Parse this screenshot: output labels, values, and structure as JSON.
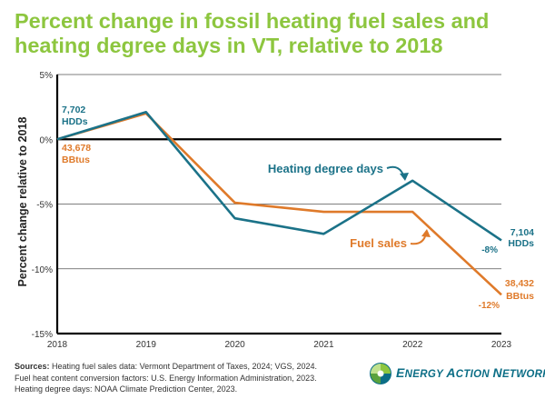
{
  "title": "Percent change in fossil heating fuel sales and heating degree days in VT, relative to 2018",
  "chart_data": {
    "type": "line",
    "x": [
      2018,
      2019,
      2020,
      2021,
      2022,
      2023
    ],
    "ylabel": "Percent change relative to 2018",
    "ylim": [
      -15,
      5
    ],
    "yticks": [
      5,
      0,
      -5,
      -10,
      -15
    ],
    "ytick_labels": [
      "5%",
      "0%",
      "-5%",
      "-10%",
      "-15%"
    ],
    "xtick_labels": [
      "2018",
      "2019",
      "2020",
      "2021",
      "2022",
      "2023"
    ],
    "grid": "horizontal",
    "series": [
      {
        "name": "Heating degree days",
        "color": "#1b7288",
        "values": [
          0,
          2.1,
          -6.1,
          -7.3,
          -3.2,
          -7.8
        ],
        "start_label": [
          "7,702",
          "HDDs"
        ],
        "end_label": [
          "7,104",
          "HDDs"
        ],
        "end_pct": "-8%"
      },
      {
        "name": "Fuel sales",
        "color": "#df7a2a",
        "values": [
          0,
          2.0,
          -4.9,
          -5.6,
          -5.6,
          -12.0
        ],
        "start_label": [
          "43,678",
          "BBtus"
        ],
        "end_label": [
          "38,432",
          "BBtus"
        ],
        "end_pct": "-12%"
      }
    ]
  },
  "sources": {
    "heading": "Sources:",
    "line1": "Heating fuel sales data: Vermont Department of Taxes, 2024; VGS, 2024.",
    "line2": "Fuel heat content conversion factors: U.S. Energy Information Administration, 2023.",
    "line3": "Heating degree days: NOAA Climate Prediction Center, 2023."
  },
  "logo": {
    "name": "Energy Action Network",
    "big1": "E",
    "small1": "NERGY ",
    "big2": "A",
    "small2": "CTION ",
    "big3": "N",
    "small3": "ETWORK",
    "colors": [
      "#8dc63f",
      "#0c6e86"
    ]
  }
}
